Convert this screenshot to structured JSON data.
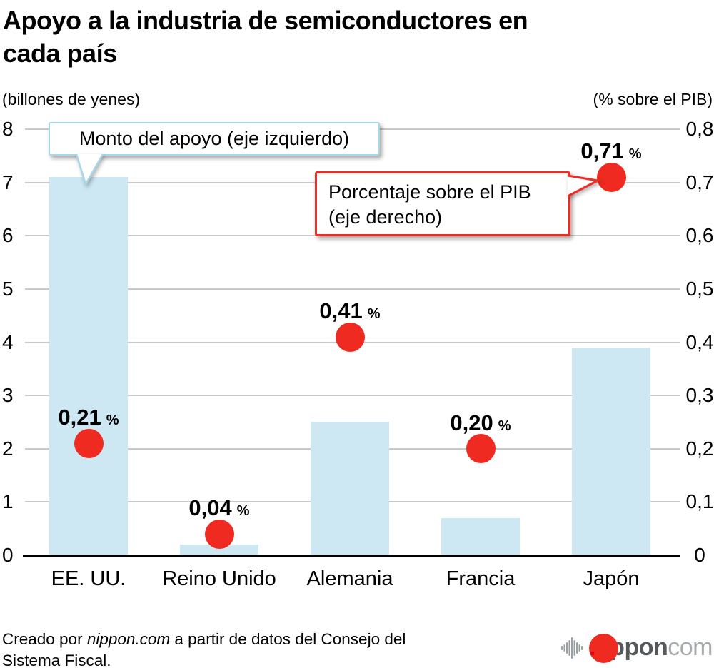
{
  "title": "Apoyo a la industria de semiconductores en cada país",
  "title_lines": [
    "Apoyo a la industria de semiconductores en",
    "cada país"
  ],
  "callouts": {
    "bar_series": "Monto del apoyo (eje izquierdo)",
    "dot_series_line1": "Porcentaje sobre el PIB",
    "dot_series_line2": "(eje derecho)"
  },
  "chart_data": {
    "type": "combo bar + scatter (dual axis)",
    "categories": [
      "EE. UU.",
      "Reino Unido",
      "Alemania",
      "Francia",
      "Japón"
    ],
    "series": [
      {
        "name": "Monto del apoyo (eje izquierdo)",
        "type": "bar",
        "axis": "left",
        "values": [
          7.1,
          0.2,
          2.5,
          0.7,
          3.9
        ],
        "color": "#cde8f3"
      },
      {
        "name": "Porcentaje sobre el PIB (eje derecho)",
        "type": "scatter",
        "axis": "right",
        "values": [
          0.21,
          0.04,
          0.41,
          0.2,
          0.71
        ],
        "labels": [
          "0,21",
          "0,04",
          "0,41",
          "0,20",
          "0,71"
        ],
        "color": "#ee2a21"
      }
    ],
    "percent_suffix": "%",
    "left_axis": {
      "label": "(billones de yenes)",
      "range": [
        0,
        8
      ],
      "ticks": [
        "0",
        "1",
        "2",
        "3",
        "4",
        "5",
        "6",
        "7",
        "8"
      ]
    },
    "right_axis": {
      "label": "(% sobre el PIB)",
      "range": [
        0,
        0.8
      ],
      "ticks": [
        "0",
        "0,1",
        "0,2",
        "0,3",
        "0,4",
        "0,5",
        "0,6",
        "0,7",
        "0,8"
      ]
    },
    "grid": true,
    "legend_position": "callouts inside plot"
  },
  "footer": {
    "line1_prefix": "Creado por ",
    "brand": "nippon.com",
    "line1_suffix": " a partir de datos del Consejo del",
    "line2": "Sistema Fiscal.",
    "logo_word": "nippon",
    "logo_dot": ".",
    "logo_tld": "com"
  },
  "colors": {
    "bar": "#cde8f3",
    "dot": "#ee2a21",
    "callout_bar_border": "#a7d7e9",
    "callout_dot_border": "#ee2c23",
    "gridline": "#c9c9c9",
    "axis_line": "#000000",
    "logo_gray": "#55595c",
    "logo_light_gray": "#a8abae",
    "logo_red": "#e60012"
  }
}
